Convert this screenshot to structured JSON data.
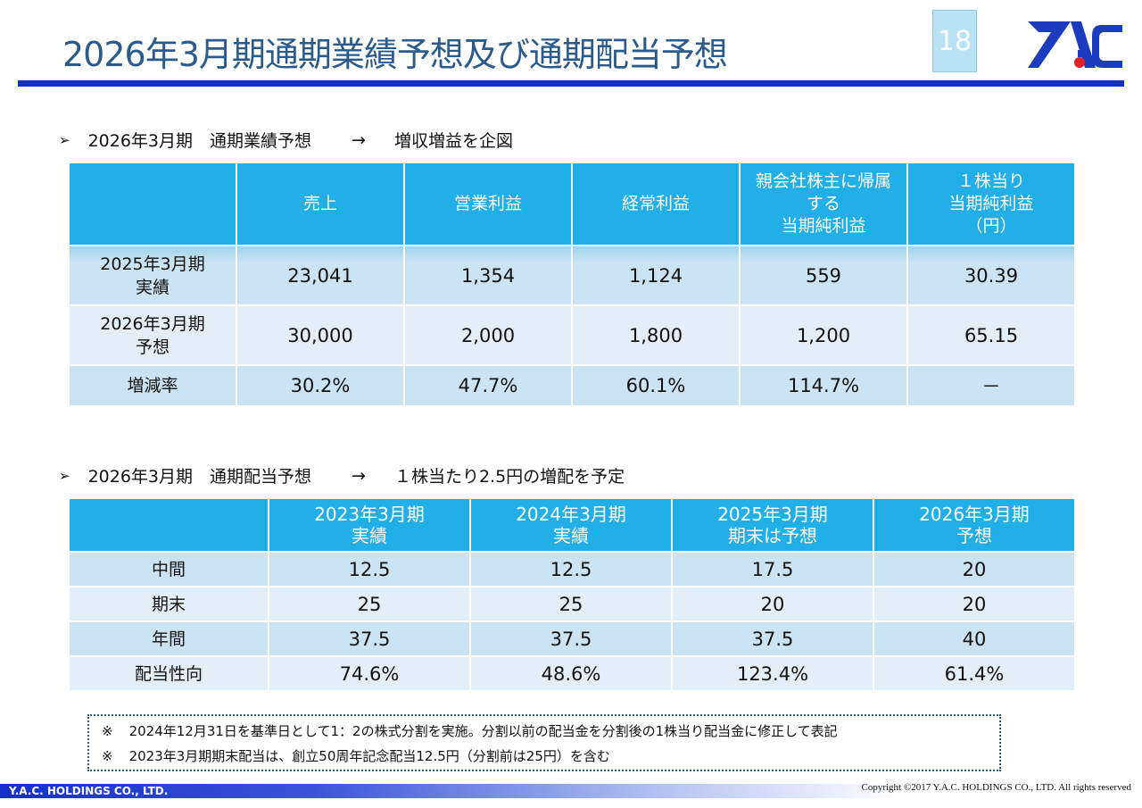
{
  "title": "2026年3月期通期業績予想及び通期配当予想",
  "page_number": "18",
  "section1": {
    "bullet": "➢",
    "label": "2026年3月期　通期業績予想",
    "arrow": "→",
    "text": "増収増益を企図"
  },
  "earnings_table": {
    "headers": [
      "",
      "売上",
      "営業利益",
      "経常利益",
      "親会社株主に帰属する\n当期純利益",
      "１株当り\n当期純利益\n（円）"
    ],
    "rows": [
      {
        "label": "2025年3月期\n実績",
        "values": [
          "23,041",
          "1,354",
          "1,124",
          "559",
          "30.39"
        ]
      },
      {
        "label": "2026年3月期\n予想",
        "values": [
          "30,000",
          "2,000",
          "1,800",
          "1,200",
          "65.15"
        ]
      },
      {
        "label": "増減率",
        "values": [
          "30.2%",
          "47.7%",
          "60.1%",
          "114.7%",
          "－"
        ]
      }
    ]
  },
  "section2": {
    "bullet": "➢",
    "label": "2026年3月期　通期配当予想",
    "arrow": "→",
    "text": "１株当たり2.5円の増配を予定"
  },
  "dividend_table": {
    "headers": [
      "",
      "2023年3月期\n実績",
      "2024年3月期\n実績",
      "2025年3月期\n期末は予想",
      "2026年3月期\n予想"
    ],
    "rows": [
      {
        "label": "中間",
        "values": [
          "12.5",
          "12.5",
          "17.5",
          "20"
        ]
      },
      {
        "label": "期末",
        "values": [
          "25",
          "25",
          "20",
          "20"
        ]
      },
      {
        "label": "年間",
        "values": [
          "37.5",
          "37.5",
          "37.5",
          "40"
        ]
      },
      {
        "label": "配当性向",
        "values": [
          "74.6%",
          "48.6%",
          "123.4%",
          "61.4%"
        ]
      }
    ]
  },
  "notes": [
    {
      "mark": "※",
      "text": "2024年12月31日を基準日として1：2の株式分割を実施。分割以前の配当金を分割後の1株当り配当金に修正して表記"
    },
    {
      "mark": "※",
      "text": "2023年3月期期末配当は、創立50周年記念配当12.5円（分割前は25円）を含む"
    }
  ],
  "footer": {
    "company": "Y.A.C. HOLDINGS CO., LTD.",
    "copyright": "Copyright ©2017 Y.A.C. HOLDINGS CO., LTD.  All rights reserved"
  },
  "colors": {
    "title": "#2a5b8c",
    "rule": "#1430c8",
    "table_header": "#22aee6",
    "row_dark": "#cbe3f2",
    "row_light": "#e3eff8",
    "logo_dot": "#e0202a"
  },
  "logo": {
    "icon": "yac-logo-icon"
  }
}
